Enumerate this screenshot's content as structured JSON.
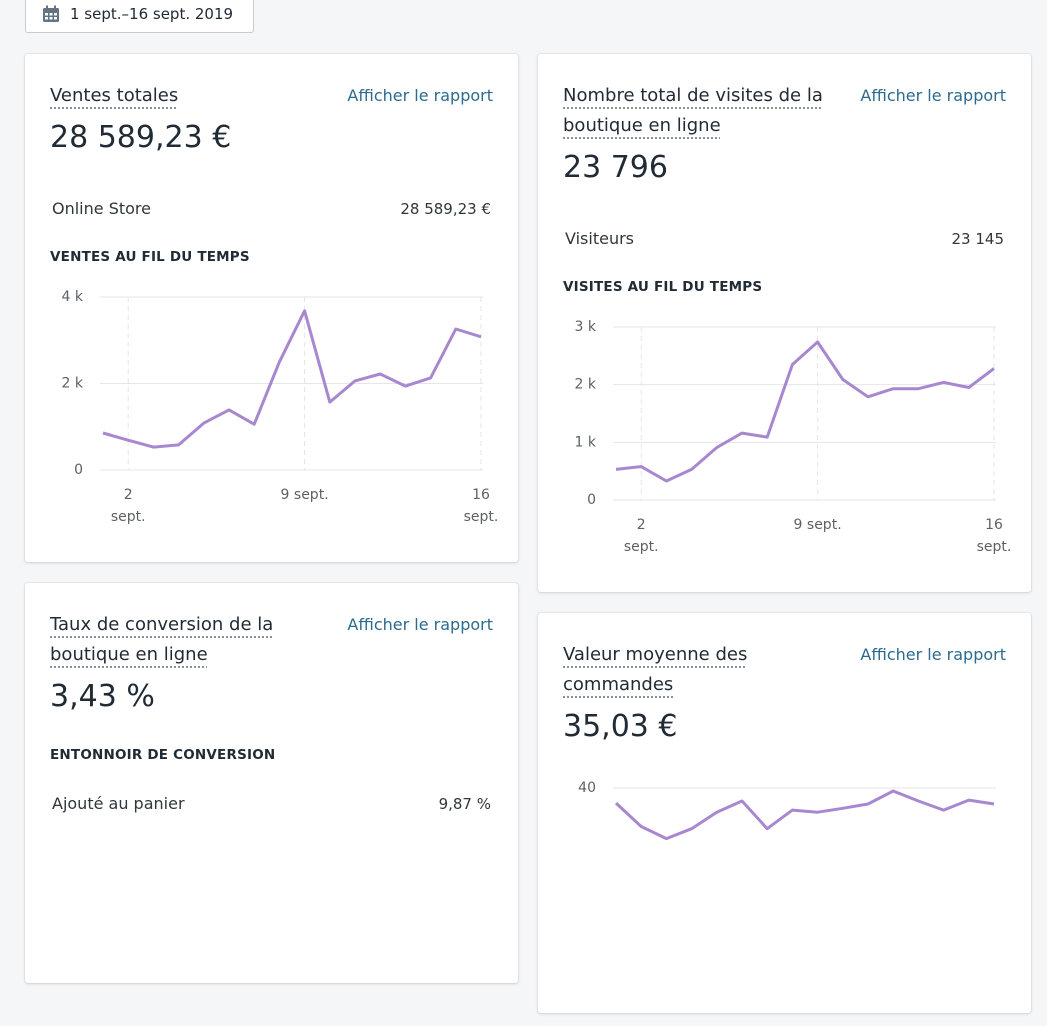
{
  "date_range": "1 sept.–16 sept. 2019",
  "cards": [
    {
      "title": "Ventes totales",
      "link": "Afficher le rapport",
      "value": "28 589,23 €",
      "rows": [
        {
          "label": "Online Store",
          "value": "28 589,23 €"
        }
      ],
      "section": "VENTES AU FIL DU TEMPS",
      "chart": {
        "type": "line",
        "color": "#a788d0",
        "grid": true,
        "x": [
          1,
          2,
          3,
          4,
          5,
          6,
          7,
          8,
          9,
          10,
          11,
          12,
          13,
          14,
          15,
          16
        ],
        "xlim": [
          1,
          16
        ],
        "xticks": [
          {
            "value": 2,
            "label": "2 sept."
          },
          {
            "value": 9,
            "label": "9 sept."
          },
          {
            "value": 16,
            "label": "16 sept."
          }
        ],
        "values": [
          855,
          690,
          530,
          580,
          1085,
          1390,
          1060,
          2500,
          3680,
          1570,
          2060,
          2220,
          1940,
          2130,
          3260,
          3080
        ],
        "ylim": [
          0,
          4000
        ],
        "yticks": [
          0,
          {
            "value": 2000,
            "label": "2 k"
          },
          {
            "value": 4000,
            "label": "4 k"
          }
        ]
      }
    },
    {
      "title": "Nombre total de visites de la boutique en ligne",
      "link": "Afficher le rapport",
      "value": "23 796",
      "rows": [
        {
          "label": "Visiteurs",
          "value": "23 145"
        }
      ],
      "section": "VISITES AU FIL DU TEMPS",
      "chart": {
        "type": "line",
        "color": "#a788d0",
        "grid": true,
        "x": [
          1,
          2,
          3,
          4,
          5,
          6,
          7,
          8,
          9,
          10,
          11,
          12,
          13,
          14,
          15,
          16
        ],
        "xlim": [
          1,
          16
        ],
        "xticks": [
          {
            "value": 2,
            "label": "2 sept."
          },
          {
            "value": 9,
            "label": "9 sept."
          },
          {
            "value": 16,
            "label": "16 sept."
          }
        ],
        "values": [
          530,
          580,
          330,
          530,
          910,
          1160,
          1090,
          2350,
          2740,
          2090,
          1790,
          1930,
          1930,
          2040,
          1950,
          2280
        ],
        "ylim": [
          0,
          3000
        ],
        "yticks": [
          0,
          {
            "value": 1000,
            "label": "1 k"
          },
          {
            "value": 2000,
            "label": "2 k"
          },
          {
            "value": 3000,
            "label": "3 k"
          }
        ]
      }
    },
    {
      "title": "Taux de conversion de la boutique en ligne",
      "link": "Afficher le rapport",
      "value": "3,43 %",
      "section": "ENTONNOIR DE CONVERSION",
      "rows": [
        {
          "label": "Ajouté au panier",
          "value": "9,87 %"
        }
      ]
    },
    {
      "title": "Valeur moyenne des commandes",
      "link": "Afficher le rapport",
      "value": "35,03 €",
      "chart": {
        "type": "line",
        "color": "#a788d0",
        "grid": true,
        "x": [
          1,
          2,
          3,
          4,
          5,
          6,
          7,
          8,
          9,
          10,
          11,
          12,
          13,
          14,
          15,
          16
        ],
        "xlim": [
          1,
          16
        ],
        "xticks": [],
        "values": [
          36.5,
          31.1,
          28.3,
          30.6,
          34.4,
          37.0,
          30.6,
          34.9,
          34.4,
          35.3,
          36.3,
          39.3,
          37.0,
          34.9,
          37.2,
          36.3
        ],
        "ylim": [
          0,
          40
        ],
        "yticks": [
          40
        ]
      }
    }
  ]
}
